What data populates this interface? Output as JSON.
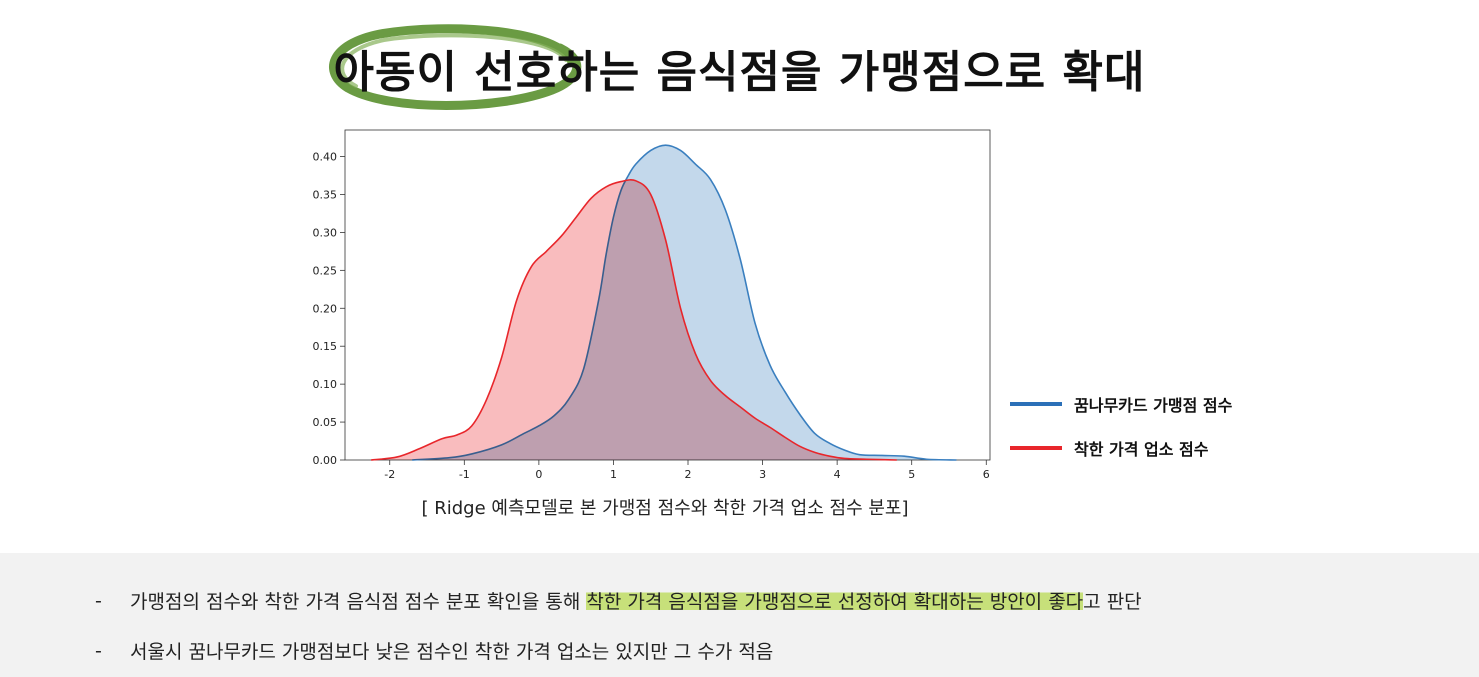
{
  "title": "아동이 선호하는 음식점을 가맹점으로 확대",
  "caption": "[ Ridge 예측모델로 본 가맹점 점수와 착한 가격 업소 점수 분포]",
  "colors": {
    "blue_line": "#3a7fbf",
    "blue_fill": "#a9c8e3",
    "red_line": "#e8262b",
    "red_fill": "#f7a5a8",
    "accent_oval": "#6a9b43",
    "highlight": "#c7e07a",
    "notes_bg": "#f2f2f2"
  },
  "legend": [
    {
      "label": "꿈나무카드 가맹점 점수",
      "color": "#2b70b8"
    },
    {
      "label": "착한 가격 업소 점수",
      "color": "#e8262b"
    }
  ],
  "notes": [
    {
      "dash": "-",
      "text_before": "가맹점의 점수와 착한 가격 음식점 점수 분포 확인을 통해 ",
      "text_highlight": "착한 가격 음식점을 가맹점으로 선정하여 확대하는 방안이 좋다",
      "text_after": "고 판단"
    },
    {
      "dash": "-",
      "text_before": "서울시 꿈나무카드 가맹점보다 낮은 점수인 착한 가격 업소는 있지만 그 수가 적음",
      "text_highlight": "",
      "text_after": ""
    }
  ],
  "chart_data": {
    "type": "area",
    "title": "",
    "xlabel": "",
    "ylabel": "",
    "xlim": [
      -2.6,
      6.05
    ],
    "ylim": [
      0,
      0.435
    ],
    "x_ticks": [
      -2,
      -1,
      0,
      1,
      2,
      3,
      4,
      5,
      6
    ],
    "y_ticks": [
      0.0,
      0.05,
      0.1,
      0.15,
      0.2,
      0.25,
      0.3,
      0.35,
      0.4
    ],
    "x_tick_labels": [
      "-2",
      "-1",
      "0",
      "1",
      "2",
      "3",
      "4",
      "5",
      "6"
    ],
    "y_tick_labels": [
      "0.00",
      "0.05",
      "0.10",
      "0.15",
      "0.20",
      "0.25",
      "0.30",
      "0.35",
      "0.40"
    ],
    "series": [
      {
        "name": "꿈나무카드 가맹점 점수",
        "x": [
          -1.7,
          -1.2,
          -0.9,
          -0.5,
          -0.2,
          0.0,
          0.2,
          0.4,
          0.6,
          0.8,
          0.9,
          1.0,
          1.1,
          1.2,
          1.3,
          1.5,
          1.7,
          1.9,
          2.1,
          2.3,
          2.5,
          2.7,
          2.9,
          3.1,
          3.3,
          3.5,
          3.7,
          3.9,
          4.1,
          4.3,
          4.6,
          4.9,
          5.2,
          5.6
        ],
        "y": [
          0.0,
          0.003,
          0.008,
          0.02,
          0.035,
          0.045,
          0.058,
          0.08,
          0.12,
          0.21,
          0.27,
          0.32,
          0.355,
          0.375,
          0.39,
          0.408,
          0.415,
          0.408,
          0.39,
          0.37,
          0.33,
          0.265,
          0.18,
          0.125,
          0.09,
          0.06,
          0.035,
          0.022,
          0.013,
          0.007,
          0.006,
          0.005,
          0.001,
          0.0
        ]
      },
      {
        "name": "착한 가격 업소 점수",
        "x": [
          -2.25,
          -1.9,
          -1.6,
          -1.3,
          -1.1,
          -0.9,
          -0.7,
          -0.5,
          -0.3,
          -0.1,
          0.1,
          0.3,
          0.5,
          0.7,
          0.9,
          1.1,
          1.3,
          1.5,
          1.7,
          1.9,
          2.1,
          2.3,
          2.5,
          2.7,
          2.9,
          3.1,
          3.3,
          3.5,
          3.7,
          3.9,
          4.1,
          4.4,
          4.8
        ],
        "y": [
          0.0,
          0.004,
          0.015,
          0.028,
          0.033,
          0.045,
          0.08,
          0.135,
          0.21,
          0.255,
          0.275,
          0.295,
          0.32,
          0.345,
          0.36,
          0.367,
          0.368,
          0.35,
          0.29,
          0.2,
          0.14,
          0.105,
          0.085,
          0.07,
          0.055,
          0.043,
          0.03,
          0.018,
          0.01,
          0.005,
          0.002,
          0.001,
          0.0
        ]
      }
    ],
    "legend_placement": "right"
  }
}
